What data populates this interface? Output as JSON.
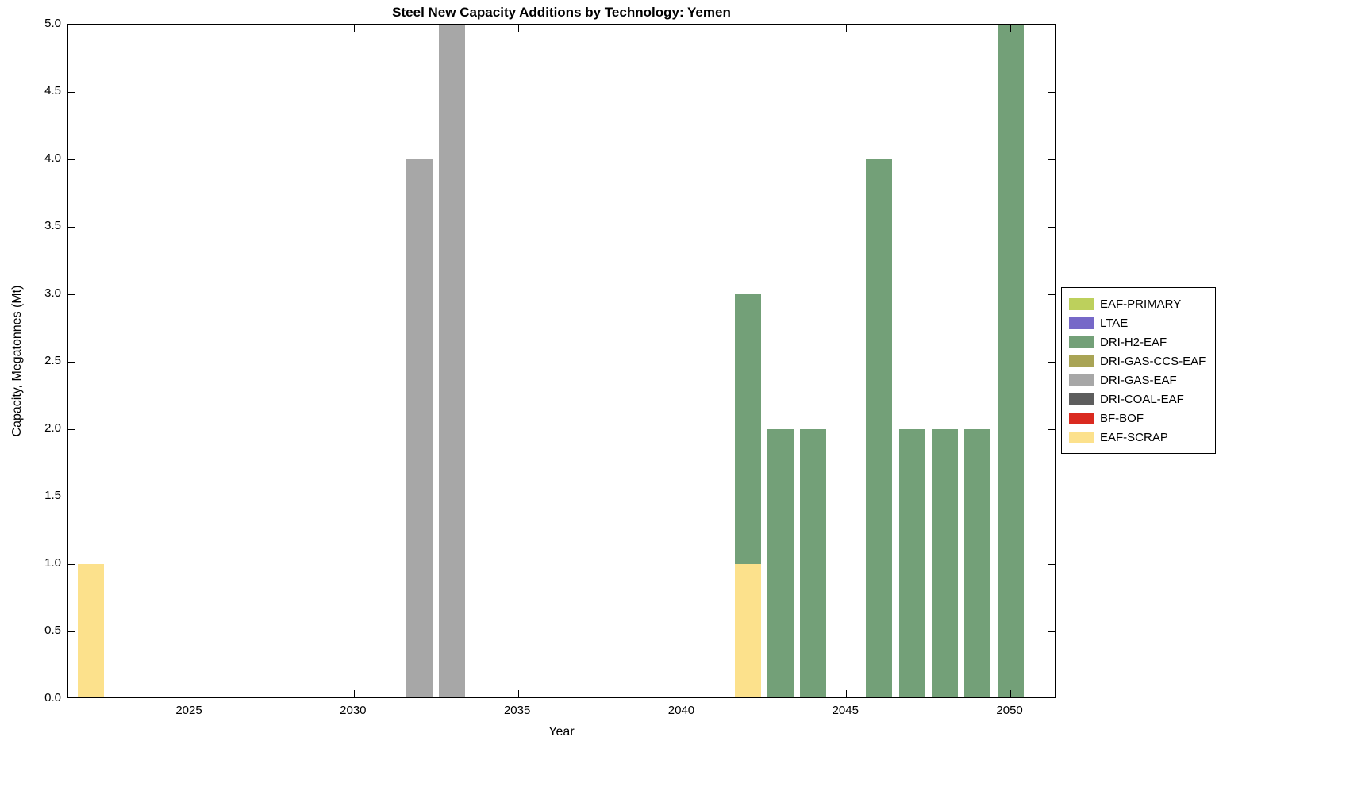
{
  "title": "Steel New Capacity Additions by Technology: Yemen",
  "chart_data": {
    "type": "bar",
    "stacked": true,
    "title": "Steel New Capacity Additions by Technology: Yemen",
    "xlabel": "Year",
    "ylabel": "Capacity, Megatonnes (Mt)",
    "xlim": [
      2021.3,
      2051.4
    ],
    "ylim": [
      0,
      5
    ],
    "bar_width_years": 0.8,
    "grid": false,
    "background": "#ffffff",
    "axis_color": "#000000",
    "legend_position": "right-outside",
    "x_ticks": [
      2025,
      2030,
      2035,
      2040,
      2045,
      2050
    ],
    "x_tick_labels": [
      "2025",
      "2030",
      "2035",
      "2040",
      "2045",
      "2050"
    ],
    "y_ticks": [
      0,
      0.5,
      1,
      1.5,
      2,
      2.5,
      3,
      3.5,
      4,
      4.5,
      5
    ],
    "y_tick_labels": [
      "0.0",
      "0.5",
      "1.0",
      "1.5",
      "2.0",
      "2.5",
      "3.0",
      "3.5",
      "4.0",
      "4.5",
      "5.0"
    ],
    "series": [
      {
        "name": "EAF-PRIMARY",
        "color": "#bdd05c",
        "data": []
      },
      {
        "name": "LTAE",
        "color": "#7668c8",
        "data": []
      },
      {
        "name": "DRI-H2-EAF",
        "color": "#73a078",
        "data": [
          {
            "x": 2042,
            "y": 2
          },
          {
            "x": 2043,
            "y": 2
          },
          {
            "x": 2044,
            "y": 2
          },
          {
            "x": 2046,
            "y": 4
          },
          {
            "x": 2047,
            "y": 2
          },
          {
            "x": 2048,
            "y": 2
          },
          {
            "x": 2049,
            "y": 2
          },
          {
            "x": 2050,
            "y": 5
          }
        ]
      },
      {
        "name": "DRI-GAS-CCS-EAF",
        "color": "#a9a455",
        "data": []
      },
      {
        "name": "DRI-GAS-EAF",
        "color": "#a7a7a7",
        "data": [
          {
            "x": 2032,
            "y": 4
          },
          {
            "x": 2033,
            "y": 5
          }
        ]
      },
      {
        "name": "DRI-COAL-EAF",
        "color": "#5d5d5d",
        "data": []
      },
      {
        "name": "BF-BOF",
        "color": "#da2a20",
        "data": []
      },
      {
        "name": "EAF-SCRAP",
        "color": "#fce18c",
        "data": [
          {
            "x": 2022,
            "y": 1
          },
          {
            "x": 2042,
            "y": 1
          }
        ]
      }
    ]
  }
}
